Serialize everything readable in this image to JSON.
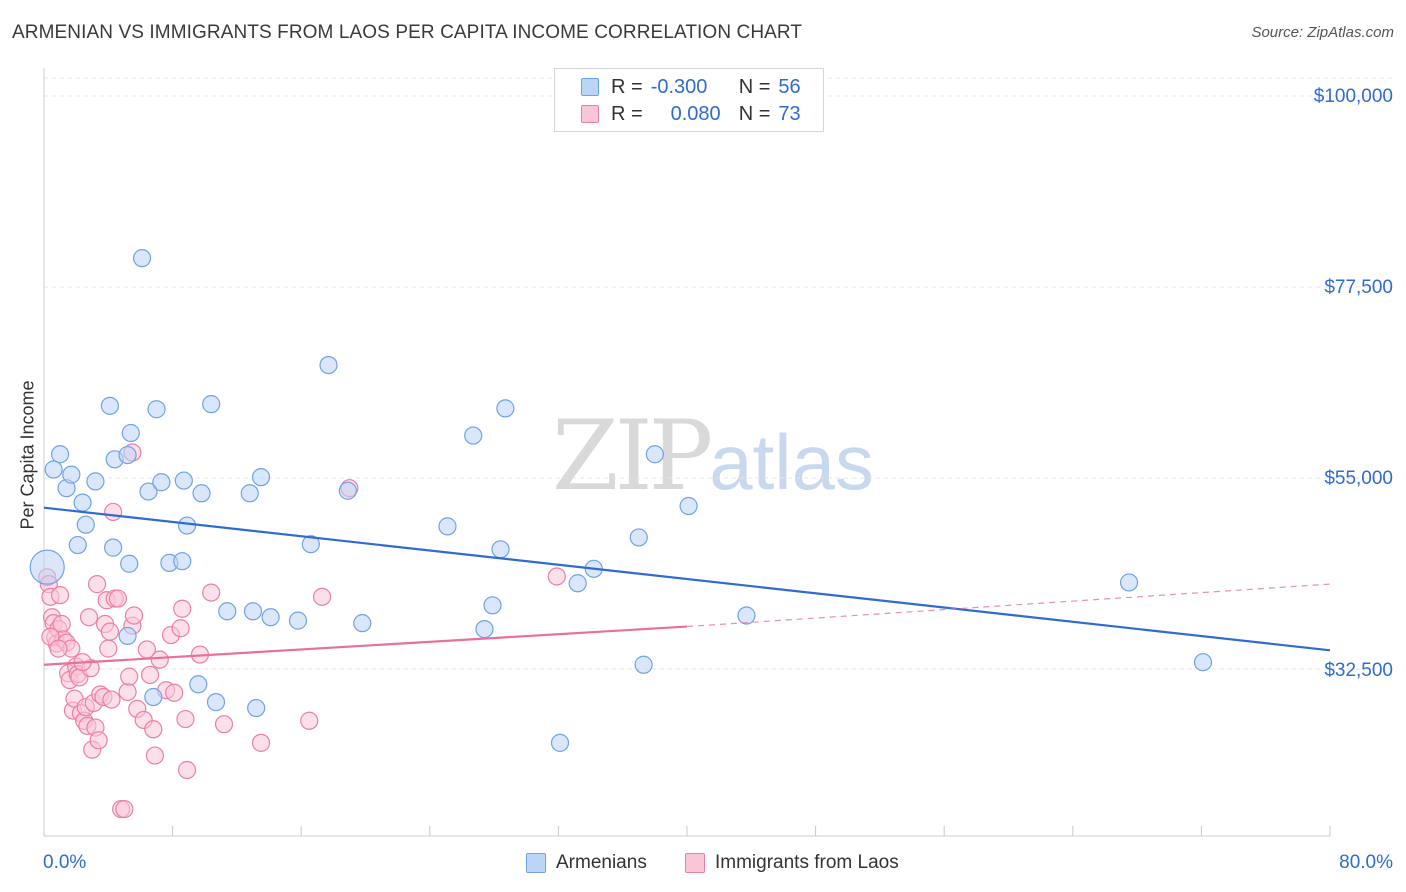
{
  "title": "ARMENIAN VS IMMIGRANTS FROM LAOS PER CAPITA INCOME CORRELATION CHART",
  "source": "Source: ZipAtlas.com",
  "watermark": {
    "zip": "ZIP",
    "atlas": "atlas"
  },
  "colors": {
    "blue": "#6fa3e6",
    "blue_fill": "#bcd4f5",
    "pink": "#ec7fa6",
    "pink_fill": "#f9c6d7",
    "blue_line": "#2f6ccf",
    "pink_line": "#e8709a",
    "axis_text": "#2f6ccf"
  },
  "legend_top": {
    "rows": [
      {
        "r_label": "R =",
        "r_value": "-0.300",
        "n_label": "N =",
        "n_value": "56"
      },
      {
        "r_label": "R =",
        "r_value": "0.080",
        "n_label": "N =",
        "n_value": "73"
      }
    ]
  },
  "bottom_legend": {
    "armenians": "Armenians",
    "laos": "Immigrants from Laos"
  },
  "y_axis_title": "Per Capita Income",
  "y_ticks": {
    "t100": "$100,000",
    "t775": "$77,500",
    "t55": "$55,000",
    "t325": "$32,500"
  },
  "x_ticks": {
    "min": "0.0%",
    "max": "80.0%"
  },
  "chart_data": {
    "type": "scatter",
    "title": "ARMENIAN VS IMMIGRANTS FROM LAOS PER CAPITA INCOME CORRELATION CHART",
    "xlabel": "",
    "ylabel": "Per Capita Income",
    "xlim": [
      0,
      80
    ],
    "ylim": [
      13000,
      103000
    ],
    "y_gridlines": [
      32500,
      55000,
      77500,
      100000
    ],
    "series": [
      {
        "name": "Armenians",
        "R": -0.3,
        "N": 56,
        "trend": {
          "x": [
            0,
            80
          ],
          "y": [
            51500,
            34700
          ]
        },
        "points": [
          [
            0.2,
            44.5,
            "large"
          ],
          [
            1.0,
            57.8
          ],
          [
            0.6,
            56.0
          ],
          [
            1.4,
            53.8
          ],
          [
            1.7,
            55.4
          ],
          [
            2.4,
            52.1
          ],
          [
            2.6,
            49.5
          ],
          [
            3.2,
            54.6
          ],
          [
            2.1,
            47.1
          ],
          [
            4.1,
            63.5
          ],
          [
            4.4,
            57.2
          ],
          [
            5.4,
            60.3
          ],
          [
            5.2,
            57.7
          ],
          [
            4.3,
            46.8
          ],
          [
            5.3,
            44.9
          ],
          [
            6.1,
            80.9
          ],
          [
            6.5,
            53.4
          ],
          [
            7.0,
            63.1
          ],
          [
            7.3,
            54.5
          ],
          [
            7.8,
            45.0
          ],
          [
            8.6,
            45.2
          ],
          [
            8.9,
            49.4
          ],
          [
            8.7,
            54.7
          ],
          [
            9.8,
            53.2
          ],
          [
            10.4,
            63.7
          ],
          [
            12.8,
            53.2
          ],
          [
            13.5,
            55.1
          ],
          [
            11.4,
            39.3
          ],
          [
            13.0,
            39.3
          ],
          [
            14.1,
            38.6
          ],
          [
            15.8,
            38.2
          ],
          [
            16.6,
            47.2
          ],
          [
            17.7,
            68.3
          ],
          [
            18.9,
            53.5
          ],
          [
            19.8,
            37.9
          ],
          [
            5.2,
            36.4
          ],
          [
            6.8,
            29.2
          ],
          [
            9.6,
            30.7
          ],
          [
            10.7,
            28.6
          ],
          [
            13.2,
            27.9
          ],
          [
            25.1,
            49.3
          ],
          [
            26.7,
            60.0
          ],
          [
            28.7,
            63.2
          ],
          [
            28.4,
            46.6
          ],
          [
            27.4,
            37.2
          ],
          [
            27.9,
            40.0
          ],
          [
            32.1,
            23.8
          ],
          [
            33.2,
            42.6
          ],
          [
            34.2,
            44.3
          ],
          [
            37.0,
            48.0
          ],
          [
            37.3,
            33.0
          ],
          [
            38.0,
            57.8
          ],
          [
            40.1,
            51.7
          ],
          [
            43.7,
            38.8
          ],
          [
            67.5,
            42.7
          ],
          [
            72.1,
            33.3
          ]
        ]
      },
      {
        "name": "Immigrants from Laos",
        "R": 0.08,
        "N": 73,
        "trend": {
          "x": [
            0,
            40
          ],
          "y": [
            33000,
            37500
          ]
        },
        "trend_dashed": {
          "x": [
            40,
            80
          ],
          "y": [
            37500,
            42500
          ]
        },
        "points": [
          [
            0.2,
            43.3
          ],
          [
            0.3,
            42.5
          ],
          [
            0.4,
            41.0
          ],
          [
            0.5,
            38.6
          ],
          [
            0.6,
            37.9
          ],
          [
            0.7,
            36.2
          ],
          [
            0.8,
            35.5
          ],
          [
            0.9,
            37.2
          ],
          [
            1.1,
            37.8
          ],
          [
            1.2,
            36.0
          ],
          [
            1.4,
            35.6
          ],
          [
            1.5,
            32.0
          ],
          [
            1.6,
            31.2
          ],
          [
            1.7,
            34.9
          ],
          [
            1.8,
            27.6
          ],
          [
            1.9,
            29.0
          ],
          [
            2.0,
            32.8
          ],
          [
            2.1,
            31.9
          ],
          [
            2.2,
            31.5
          ],
          [
            2.3,
            27.3
          ],
          [
            2.5,
            26.4
          ],
          [
            2.6,
            28.0
          ],
          [
            2.7,
            25.8
          ],
          [
            2.8,
            38.6
          ],
          [
            2.9,
            32.6
          ],
          [
            3.0,
            23.0
          ],
          [
            3.1,
            28.5
          ],
          [
            3.2,
            25.6
          ],
          [
            3.3,
            42.5
          ],
          [
            3.4,
            24.1
          ],
          [
            3.5,
            29.5
          ],
          [
            3.7,
            29.2
          ],
          [
            3.8,
            37.8
          ],
          [
            3.9,
            40.6
          ],
          [
            4.0,
            34.9
          ],
          [
            4.1,
            36.9
          ],
          [
            4.2,
            28.9
          ],
          [
            4.3,
            51.0
          ],
          [
            4.4,
            40.8
          ],
          [
            4.6,
            40.8
          ],
          [
            4.8,
            16.0
          ],
          [
            5.0,
            16.0
          ],
          [
            5.2,
            29.8
          ],
          [
            5.3,
            31.6
          ],
          [
            5.5,
            58.0
          ],
          [
            5.5,
            37.6
          ],
          [
            5.6,
            38.8
          ],
          [
            5.8,
            27.8
          ],
          [
            6.2,
            26.5
          ],
          [
            6.4,
            34.8
          ],
          [
            6.6,
            31.8
          ],
          [
            6.8,
            25.4
          ],
          [
            6.9,
            22.3
          ],
          [
            7.2,
            33.6
          ],
          [
            7.6,
            30.0
          ],
          [
            7.9,
            36.5
          ],
          [
            8.1,
            29.7
          ],
          [
            8.5,
            37.3
          ],
          [
            8.6,
            39.6
          ],
          [
            8.8,
            26.6
          ],
          [
            8.9,
            20.6
          ],
          [
            9.7,
            34.2
          ],
          [
            10.4,
            41.5
          ],
          [
            11.2,
            26.0
          ],
          [
            13.5,
            23.8
          ],
          [
            16.5,
            26.4
          ],
          [
            17.3,
            41.0
          ],
          [
            19.0,
            53.8
          ],
          [
            31.9,
            43.4
          ],
          [
            0.4,
            36.3
          ],
          [
            0.9,
            34.9
          ],
          [
            2.4,
            33.3
          ],
          [
            1.0,
            41.2
          ]
        ]
      }
    ]
  }
}
